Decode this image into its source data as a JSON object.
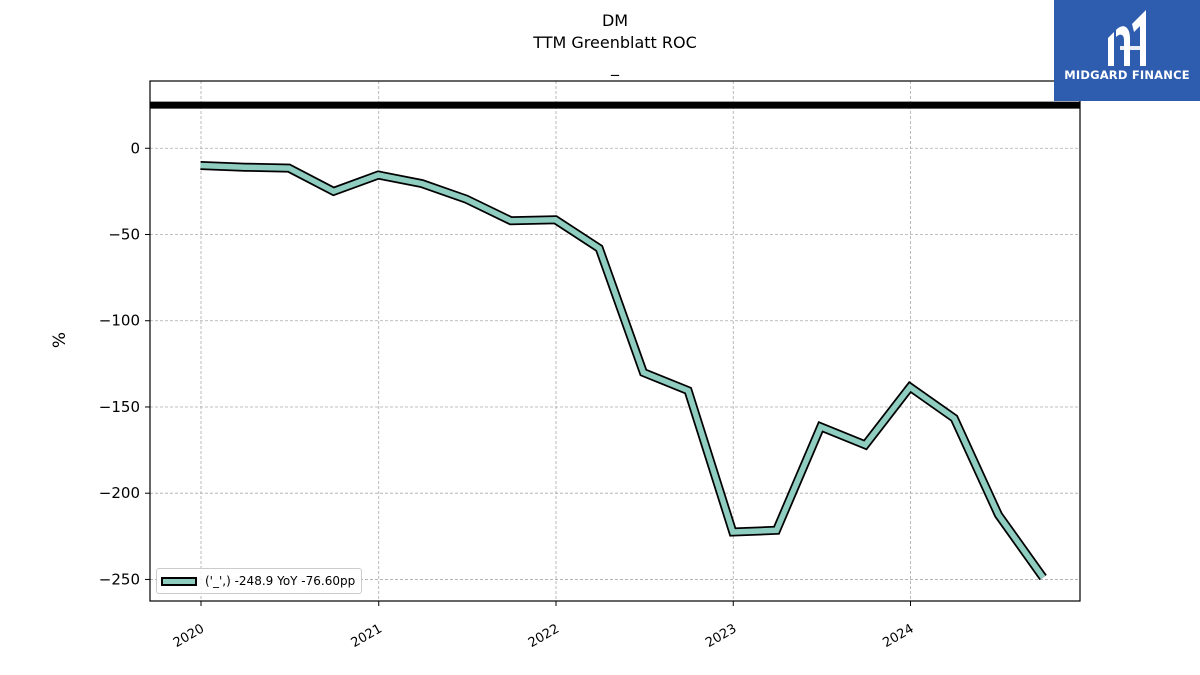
{
  "header": {
    "title": "DM",
    "subtitle": "TTM Greenblatt ROC",
    "subtitle2": "_"
  },
  "logo": {
    "text": "MIDGARD FINANCE",
    "background": "#2e5db0",
    "icon": "midgard-logo-icon"
  },
  "chart_data": {
    "type": "line",
    "title": "DM",
    "subtitle": "TTM Greenblatt ROC",
    "xlabel": "",
    "ylabel": "%",
    "x": [
      "2019-12-31",
      "2020-03-31",
      "2020-06-30",
      "2020-09-30",
      "2020-12-31",
      "2021-03-31",
      "2021-06-30",
      "2021-09-30",
      "2021-12-31",
      "2022-03-31",
      "2022-06-30",
      "2022-09-30",
      "2022-12-31",
      "2023-03-31",
      "2023-06-30",
      "2023-09-30",
      "2023-12-31",
      "2024-03-31",
      "2024-06-30",
      "2024-09-30"
    ],
    "series": [
      {
        "name": "('_',) -248.9 YoY -76.60pp",
        "values": [
          -10,
          -11,
          -11.5,
          -25,
          -15.5,
          -20.5,
          -29.5,
          -42,
          -41.5,
          -58,
          -130,
          -140.5,
          -222.5,
          -221.5,
          -161.5,
          -172,
          -138.5,
          -156.5,
          -212.5,
          -248.9
        ]
      }
    ],
    "reference_line": {
      "y": 25,
      "color": "#000000"
    },
    "ylim": [
      -262.5,
      39
    ],
    "xlim": [
      "2019-09-18",
      "2024-12-15"
    ],
    "yticks": [
      0,
      -50,
      -100,
      -150,
      -200,
      -250
    ],
    "ytick_labels": [
      "0",
      "−50",
      "−100",
      "−150",
      "−200",
      "−250"
    ],
    "xticks": [
      "2020-01-01",
      "2021-01-01",
      "2022-01-01",
      "2023-01-01",
      "2024-01-01"
    ],
    "xtick_labels": [
      "2020",
      "2021",
      "2022",
      "2023",
      "2024"
    ],
    "grid": true,
    "legend_position": "lower-left",
    "colors": {
      "line_fill": "#8ecdc0",
      "line_edge": "#000000",
      "grid": "#aaaaaa"
    }
  }
}
